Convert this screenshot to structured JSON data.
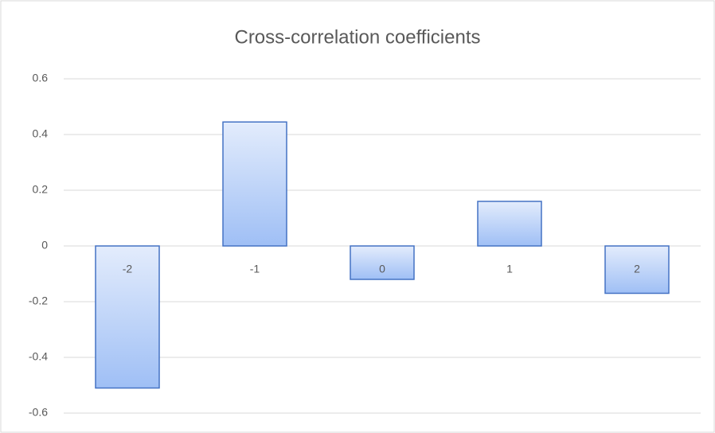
{
  "chart_data": {
    "type": "bar",
    "title": "Cross-correlation coefficients",
    "categories": [
      "-2",
      "-1",
      "0",
      "1",
      "2"
    ],
    "values": [
      -0.51,
      0.445,
      -0.12,
      0.16,
      -0.17
    ],
    "color": "#4472c4",
    "ylim": [
      -0.6,
      0.6
    ],
    "yticks": [
      -0.6,
      -0.4,
      -0.2,
      0,
      0.2,
      0.4,
      0.6
    ],
    "grid": true
  }
}
